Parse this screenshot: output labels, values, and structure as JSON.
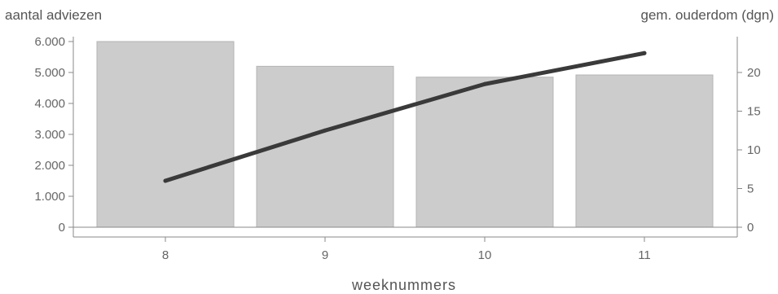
{
  "chart_data": {
    "type": "bar",
    "categories": [
      "8",
      "9",
      "10",
      "11"
    ],
    "xlabel": "weeknummers",
    "left_axis": {
      "label": "aantal adviezen",
      "ylim": [
        0,
        6000
      ],
      "ticks": [
        0,
        1000,
        2000,
        3000,
        4000,
        5000,
        6000
      ],
      "tick_labels": [
        "0",
        "1.000",
        "2.000",
        "3.000",
        "4.000",
        "5.000",
        "6.000"
      ]
    },
    "right_axis": {
      "label": "gem. ouderdom (dgn)",
      "ylim": [
        0,
        24
      ],
      "ticks": [
        0,
        5,
        10,
        15,
        20
      ],
      "tick_labels": [
        "0",
        "5",
        "10",
        "15",
        "20"
      ]
    },
    "series": [
      {
        "type": "bar",
        "axis": "left",
        "values": [
          6000,
          5200,
          4850,
          4920
        ]
      },
      {
        "type": "line",
        "axis": "right",
        "values": [
          6,
          12.5,
          18.5,
          22.5
        ]
      }
    ],
    "grid": false,
    "colors": {
      "bar": "#cccccc",
      "bar_edge": "#b5b5b5",
      "line": "#3a3a3a",
      "axis": "#888888"
    }
  }
}
